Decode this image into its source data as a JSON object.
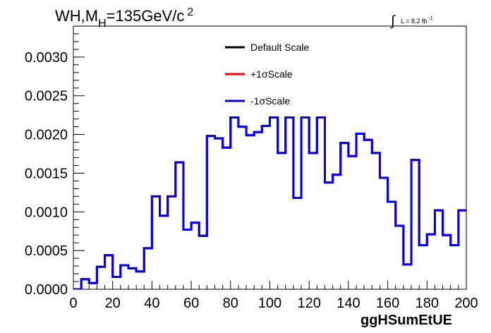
{
  "chart_data": {
    "type": "line",
    "title": "WH,M",
    "title_sub": "H",
    "title_rest": "=135GeV/c",
    "title_sup": "2",
    "xlabel": "ggHSumEtUE",
    "ylabel": "",
    "lumi": {
      "symbol": "∫",
      "label": "L = 8.2 fb",
      "sup": "-1"
    },
    "xlim": [
      0,
      200
    ],
    "ylim": [
      0,
      0.0034
    ],
    "x_ticks": [
      0,
      20,
      40,
      60,
      80,
      100,
      120,
      140,
      160,
      180,
      200
    ],
    "x_tick_labels": [
      "0",
      "20",
      "40",
      "60",
      "80",
      "100",
      "120",
      "140",
      "160",
      "180",
      "200"
    ],
    "y_ticks": [
      0,
      0.0005,
      0.001,
      0.0015,
      0.002,
      0.0025,
      0.003
    ],
    "y_tick_labels": [
      "0.0000",
      "0.0005",
      "0.0010",
      "0.0015",
      "0.0020",
      "0.0025",
      "0.0030"
    ],
    "grid": false,
    "legend_position": "top-center",
    "bin_edges": [
      0,
      4,
      8,
      12,
      16,
      20,
      24,
      28,
      32,
      36,
      40,
      44,
      48,
      52,
      56,
      60,
      64,
      68,
      72,
      76,
      80,
      84,
      88,
      92,
      96,
      100,
      104,
      108,
      112,
      116,
      120,
      124,
      128,
      132,
      136,
      140,
      144,
      148,
      152,
      156,
      160,
      164,
      168,
      172,
      176,
      180,
      184,
      188,
      192,
      196,
      200
    ],
    "series": [
      {
        "name": "Default Scale",
        "color": "#000000",
        "values": [
          0,
          0.00013,
          8e-05,
          0.00029,
          0.00044,
          0.00016,
          0.00031,
          0.00027,
          0.00023,
          0.00053,
          0.0012,
          0.00095,
          0.0012,
          0.00164,
          0.00077,
          0.00086,
          0.00069,
          0.00198,
          0.00195,
          0.00183,
          0.00222,
          0.0021,
          0.00199,
          0.00203,
          0.00211,
          0.00222,
          0.00176,
          0.00222,
          0.00118,
          0.00222,
          0.00176,
          0.00222,
          0.00138,
          0.00148,
          0.00189,
          0.00172,
          0.00201,
          0.00193,
          0.00176,
          0.00144,
          0.00113,
          0.00082,
          0.00032,
          0.00167,
          0.00057,
          0.00071,
          0.00102,
          0.0007,
          0.00057,
          0.00102
        ]
      },
      {
        "name": "+1σScale",
        "color": "#ff0000",
        "values": [
          0,
          0.00013,
          8e-05,
          0.00029,
          0.00044,
          0.00016,
          0.00031,
          0.00027,
          0.00023,
          0.00053,
          0.0012,
          0.00095,
          0.0012,
          0.00164,
          0.00077,
          0.00086,
          0.00069,
          0.00198,
          0.00195,
          0.00183,
          0.00222,
          0.0021,
          0.00199,
          0.00203,
          0.00211,
          0.00222,
          0.00176,
          0.00222,
          0.00118,
          0.00222,
          0.00176,
          0.00222,
          0.00138,
          0.00148,
          0.00189,
          0.00172,
          0.00201,
          0.00193,
          0.00176,
          0.00144,
          0.00113,
          0.00082,
          0.00032,
          0.00167,
          0.00057,
          0.00071,
          0.00102,
          0.0007,
          0.00057,
          0.00102
        ]
      },
      {
        "name": "-1σScale",
        "color": "#0000ee",
        "values": [
          0,
          0.00013,
          8e-05,
          0.00029,
          0.00044,
          0.00016,
          0.00031,
          0.00027,
          0.00023,
          0.00053,
          0.0012,
          0.00095,
          0.0012,
          0.00164,
          0.00077,
          0.00086,
          0.00069,
          0.00198,
          0.00195,
          0.00183,
          0.00222,
          0.0021,
          0.00199,
          0.00203,
          0.00211,
          0.00222,
          0.00176,
          0.00222,
          0.00118,
          0.00222,
          0.00176,
          0.00222,
          0.00138,
          0.00148,
          0.00189,
          0.00172,
          0.00201,
          0.00193,
          0.00176,
          0.00144,
          0.00113,
          0.00082,
          0.00032,
          0.00167,
          0.00057,
          0.00071,
          0.00102,
          0.0007,
          0.00057,
          0.00102
        ]
      }
    ]
  }
}
